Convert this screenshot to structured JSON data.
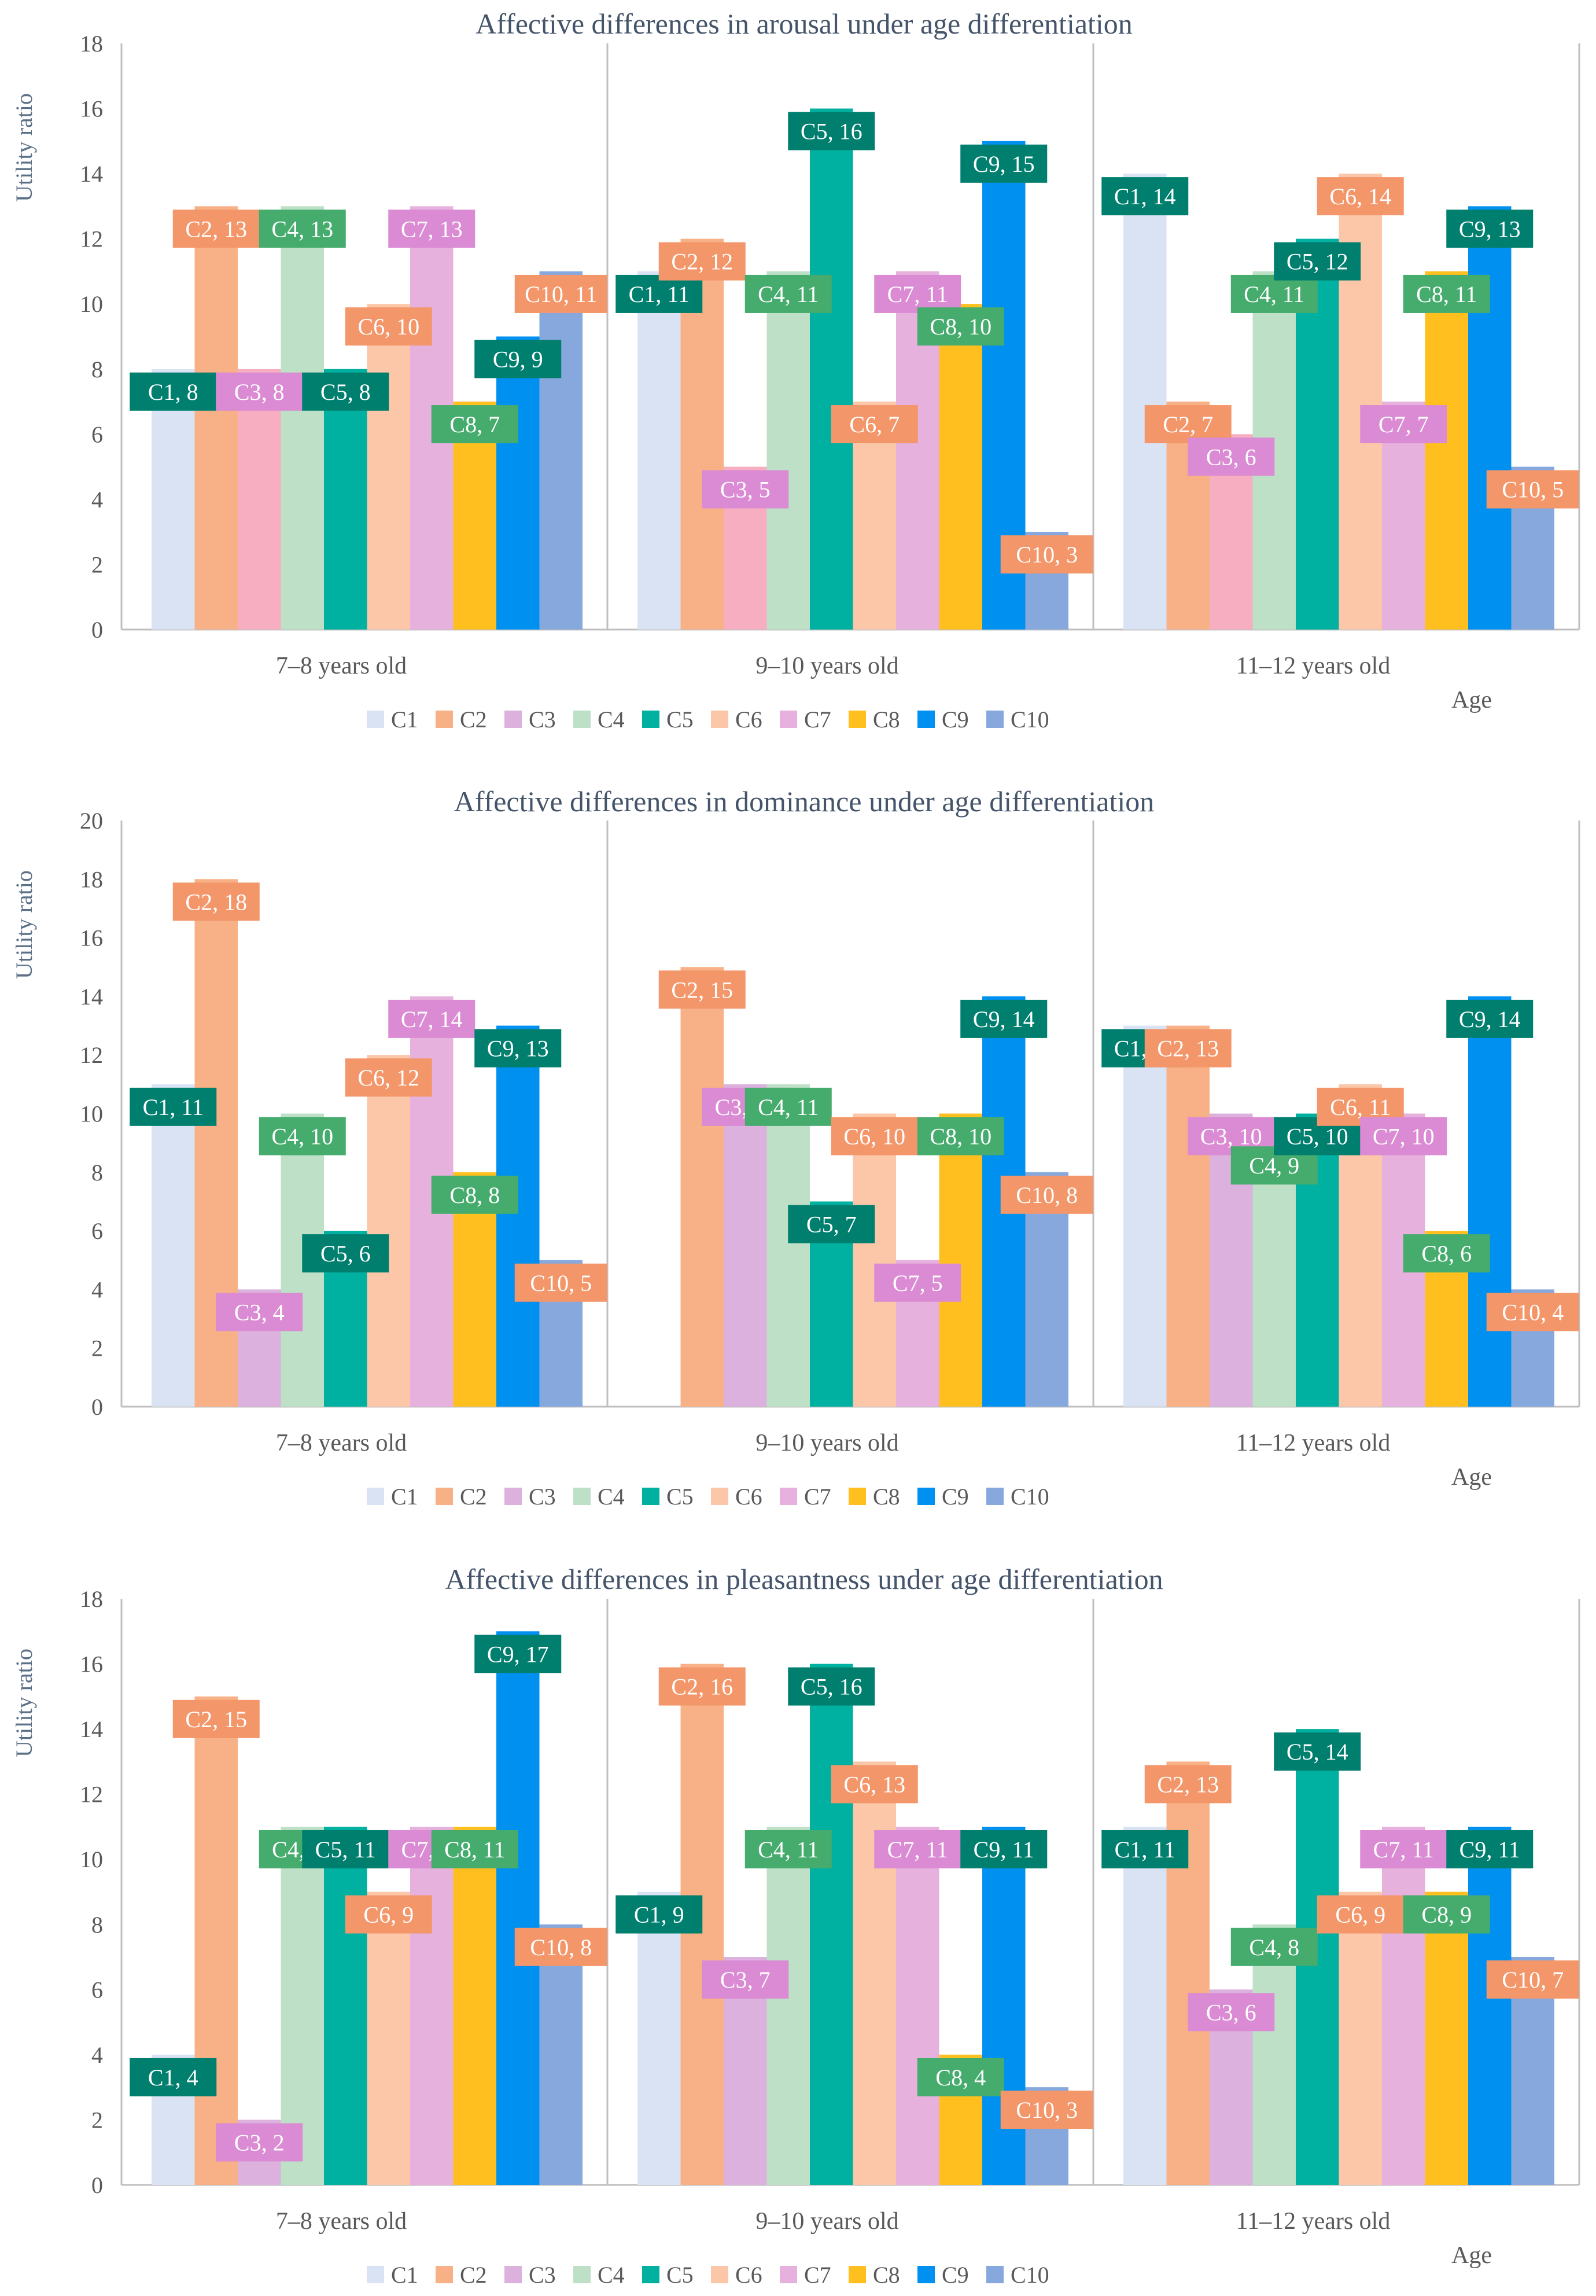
{
  "colors": {
    "C1": "#DAE3F3",
    "C2": "#F8B186",
    "C3a": "#F6AEC0",
    "C3": "#DCB1DD",
    "C4": "#BDE0C6",
    "C5": "#00B0A0",
    "C6": "#FCC6A8",
    "C7": "#E6B1DD",
    "C8": "#FFC01F",
    "C9": "#0090F0",
    "C10": "#86A8DC",
    "label_C1": "#007F6F",
    "label_C2": "#F3966A",
    "label_C3": "#DA8BD3",
    "label_C4": "#46AC6E",
    "label_C5": "#007F6F",
    "label_C6": "#F3966A",
    "label_C7": "#DA8BD3",
    "label_C8": "#46AC6E",
    "label_C9": "#007F6F",
    "label_C10": "#F3966A",
    "axis": "#BFBFBF",
    "title": "#44546A"
  },
  "chart_data": [
    {
      "type": "bar",
      "title": "Affective differences in arousal under age differentiation",
      "ylabel": "Utility ratio",
      "xlabel": "Age",
      "ylim": [
        0,
        18
      ],
      "yticks": [
        0,
        2,
        4,
        6,
        8,
        10,
        12,
        14,
        16,
        18
      ],
      "categories": [
        "7–8 years old",
        "9–10 years old",
        "11–12 years old"
      ],
      "series": [
        {
          "name": "C1",
          "values": [
            8,
            11,
            14
          ]
        },
        {
          "name": "C2",
          "values": [
            13,
            12,
            7
          ]
        },
        {
          "name": "C3",
          "values": [
            8,
            5,
            6
          ]
        },
        {
          "name": "C4",
          "values": [
            13,
            11,
            11
          ]
        },
        {
          "name": "C5",
          "values": [
            8,
            16,
            12
          ]
        },
        {
          "name": "C6",
          "values": [
            10,
            7,
            14
          ]
        },
        {
          "name": "C7",
          "values": [
            13,
            11,
            7
          ]
        },
        {
          "name": "C8",
          "values": [
            7,
            10,
            11
          ]
        },
        {
          "name": "C9",
          "values": [
            9,
            15,
            13
          ]
        },
        {
          "name": "C10",
          "values": [
            11,
            3,
            5
          ]
        }
      ],
      "legend": [
        "C1",
        "C2",
        "C3",
        "C4",
        "C5",
        "C6",
        "C7",
        "C8",
        "C9",
        "C10"
      ],
      "legend_position": "bottom"
    },
    {
      "type": "bar",
      "title": "Affective differences in dominance under age differentiation",
      "ylabel": "Utility ratio",
      "xlabel": "Age",
      "ylim": [
        0,
        20
      ],
      "yticks": [
        0,
        2,
        4,
        6,
        8,
        10,
        12,
        14,
        16,
        18,
        20
      ],
      "categories": [
        "7–8 years old",
        "9–10 years old",
        "11–12 years old"
      ],
      "series": [
        {
          "name": "C1",
          "values": [
            11,
            0,
            13
          ]
        },
        {
          "name": "C2",
          "values": [
            18,
            15,
            13
          ]
        },
        {
          "name": "C3",
          "values": [
            4,
            11,
            10
          ]
        },
        {
          "name": "C4",
          "values": [
            10,
            11,
            9
          ]
        },
        {
          "name": "C5",
          "values": [
            6,
            7,
            10
          ]
        },
        {
          "name": "C6",
          "values": [
            12,
            10,
            11
          ]
        },
        {
          "name": "C7",
          "values": [
            14,
            5,
            10
          ]
        },
        {
          "name": "C8",
          "values": [
            8,
            10,
            6
          ]
        },
        {
          "name": "C9",
          "values": [
            13,
            14,
            14
          ]
        },
        {
          "name": "C10",
          "values": [
            5,
            8,
            4
          ]
        }
      ],
      "legend": [
        "C1",
        "C2",
        "C3",
        "C4",
        "C5",
        "C6",
        "C7",
        "C8",
        "C9",
        "C10"
      ],
      "legend_position": "bottom"
    },
    {
      "type": "bar",
      "title": "Affective differences in pleasantness under age differentiation",
      "ylabel": "Utility ratio",
      "xlabel": "Age",
      "ylim": [
        0,
        18
      ],
      "yticks": [
        0,
        2,
        4,
        6,
        8,
        10,
        12,
        14,
        16,
        18
      ],
      "categories": [
        "7–8 years old",
        "9–10 years old",
        "11–12 years old"
      ],
      "series": [
        {
          "name": "C1",
          "values": [
            4,
            9,
            11
          ]
        },
        {
          "name": "C2",
          "values": [
            15,
            16,
            13
          ]
        },
        {
          "name": "C3",
          "values": [
            2,
            7,
            6
          ]
        },
        {
          "name": "C4",
          "values": [
            11,
            11,
            8
          ]
        },
        {
          "name": "C5",
          "values": [
            11,
            16,
            14
          ]
        },
        {
          "name": "C6",
          "values": [
            9,
            13,
            9
          ]
        },
        {
          "name": "C7",
          "values": [
            11,
            11,
            11
          ]
        },
        {
          "name": "C8",
          "values": [
            11,
            4,
            9
          ]
        },
        {
          "name": "C9",
          "values": [
            17,
            11,
            11
          ]
        },
        {
          "name": "C10",
          "values": [
            8,
            3,
            7
          ]
        }
      ],
      "legend": [
        "C1",
        "C2",
        "C3",
        "C4",
        "C5",
        "C6",
        "C7",
        "C8",
        "C9",
        "C10"
      ],
      "legend_position": "bottom"
    }
  ]
}
